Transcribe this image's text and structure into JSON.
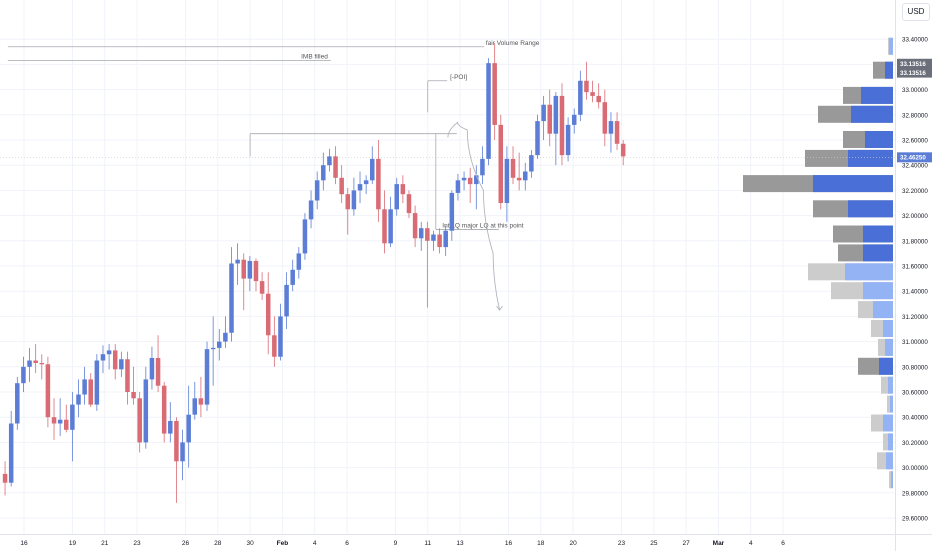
{
  "currency_button": "USD",
  "annotations": [
    {
      "name": "fvr-line",
      "label": "fair Volume Range",
      "price": 33.34,
      "x_from": 0,
      "x_to": 29.5
    },
    {
      "name": "imb-line",
      "label": "IMB filled",
      "price": 33.23,
      "x_from": 0,
      "x_to": 20.0
    },
    {
      "name": "poi-line",
      "label": "[-POI]",
      "price": 33.07,
      "x_from": 26.0,
      "x_to": 27.2
    },
    {
      "name": "poi-upper",
      "label": "",
      "price": 32.65,
      "x_from": 15.0,
      "x_to": 27.8
    },
    {
      "name": "lq-line",
      "label": "Int.LQ major LQ at this point",
      "price": 31.89,
      "x_from": 26.5,
      "x_to": 30.4
    }
  ],
  "current_price_line": 32.4625,
  "colors": {
    "up": "#5b7dd6",
    "down": "#d96b74",
    "vp_bar_dark": "#999999",
    "vp_bar_light": "#cccccc",
    "vp_blue_dark": "#4a6fd6",
    "vp_blue_light": "#93b3f5",
    "label_bg": "#6b6f7a",
    "grid": "#f0f3fa",
    "annotation": "#a6a9b1",
    "text": "#131722"
  },
  "chart_data": {
    "type": "candlestick",
    "title": "",
    "y_axis": {
      "currency": "USD",
      "ticks": [
        "29.60000",
        "29.80000",
        "30.00000",
        "30.20000",
        "30.40000",
        "30.60000",
        "30.80000",
        "31.00000",
        "31.20000",
        "31.40000",
        "31.60000",
        "31.80000",
        "32.00000",
        "32.20000",
        "32.40000",
        "32.60000",
        "32.80000",
        "33.00000",
        "33.20000",
        "33.40000"
      ],
      "ylim": [
        29.55,
        33.5
      ],
      "price_labels": [
        {
          "text": "33.13516",
          "price": 33.205
        },
        {
          "text": "33.13516",
          "price": 33.135
        },
        {
          "text": "32.46250",
          "price": 32.4625
        }
      ]
    },
    "x_axis": {
      "ticks": [
        {
          "label": "16",
          "pos": 1
        },
        {
          "label": "19",
          "pos": 4
        },
        {
          "label": "21",
          "pos": 6
        },
        {
          "label": "23",
          "pos": 8
        },
        {
          "label": "26",
          "pos": 11
        },
        {
          "label": "28",
          "pos": 13
        },
        {
          "label": "30",
          "pos": 15
        },
        {
          "label": "Feb",
          "pos": 17
        },
        {
          "label": "4",
          "pos": 19
        },
        {
          "label": "6",
          "pos": 21
        },
        {
          "label": "9",
          "pos": 24
        },
        {
          "label": "11",
          "pos": 26
        },
        {
          "label": "13",
          "pos": 28
        },
        {
          "label": "16",
          "pos": 31
        },
        {
          "label": "18",
          "pos": 33
        },
        {
          "label": "20",
          "pos": 35
        },
        {
          "label": "23",
          "pos": 38
        },
        {
          "label": "25",
          "pos": 40
        },
        {
          "label": "27",
          "pos": 42
        },
        {
          "label": "Mar",
          "pos": 44
        },
        {
          "label": "4",
          "pos": 46
        },
        {
          "label": "6",
          "pos": 48
        }
      ]
    },
    "ohlc": [
      {
        "o": 29.95,
        "h": 30.05,
        "l": 29.78,
        "c": 29.88
      },
      {
        "o": 29.88,
        "h": 30.45,
        "l": 29.85,
        "c": 30.35
      },
      {
        "o": 30.35,
        "h": 30.72,
        "l": 30.3,
        "c": 30.67
      },
      {
        "o": 30.67,
        "h": 30.88,
        "l": 30.6,
        "c": 30.8
      },
      {
        "o": 30.8,
        "h": 30.95,
        "l": 30.68,
        "c": 30.85
      },
      {
        "o": 30.85,
        "h": 30.98,
        "l": 30.75,
        "c": 30.83
      },
      {
        "o": 30.83,
        "h": 30.9,
        "l": 30.7,
        "c": 30.82
      },
      {
        "o": 30.82,
        "h": 30.88,
        "l": 30.32,
        "c": 30.4
      },
      {
        "o": 30.4,
        "h": 30.55,
        "l": 30.22,
        "c": 30.35
      },
      {
        "o": 30.35,
        "h": 30.55,
        "l": 30.25,
        "c": 30.38
      },
      {
        "o": 30.38,
        "h": 30.5,
        "l": 30.28,
        "c": 30.3
      },
      {
        "o": 30.3,
        "h": 30.6,
        "l": 30.05,
        "c": 30.5
      },
      {
        "o": 30.5,
        "h": 30.7,
        "l": 30.4,
        "c": 30.58
      },
      {
        "o": 30.58,
        "h": 30.8,
        "l": 30.5,
        "c": 30.7
      },
      {
        "o": 30.7,
        "h": 30.75,
        "l": 30.48,
        "c": 30.5
      },
      {
        "o": 30.5,
        "h": 30.9,
        "l": 30.45,
        "c": 30.85
      },
      {
        "o": 30.85,
        "h": 30.97,
        "l": 30.75,
        "c": 30.9
      },
      {
        "o": 30.9,
        "h": 30.98,
        "l": 30.78,
        "c": 30.93
      },
      {
        "o": 30.93,
        "h": 30.98,
        "l": 30.7,
        "c": 30.78
      },
      {
        "o": 30.78,
        "h": 30.92,
        "l": 30.72,
        "c": 30.86
      },
      {
        "o": 30.86,
        "h": 30.92,
        "l": 30.5,
        "c": 30.6
      },
      {
        "o": 30.6,
        "h": 30.8,
        "l": 30.5,
        "c": 30.55
      },
      {
        "o": 30.55,
        "h": 30.6,
        "l": 30.12,
        "c": 30.2
      },
      {
        "o": 30.2,
        "h": 30.8,
        "l": 30.15,
        "c": 30.7
      },
      {
        "o": 30.7,
        "h": 30.96,
        "l": 30.62,
        "c": 30.87
      },
      {
        "o": 30.87,
        "h": 31.05,
        "l": 30.6,
        "c": 30.65
      },
      {
        "o": 30.65,
        "h": 30.68,
        "l": 30.2,
        "c": 30.27
      },
      {
        "o": 30.27,
        "h": 30.52,
        "l": 30.2,
        "c": 30.37
      },
      {
        "o": 30.37,
        "h": 30.4,
        "l": 29.72,
        "c": 30.05
      },
      {
        "o": 30.05,
        "h": 30.3,
        "l": 29.9,
        "c": 30.2
      },
      {
        "o": 30.2,
        "h": 30.65,
        "l": 30.0,
        "c": 30.42
      },
      {
        "o": 30.42,
        "h": 30.68,
        "l": 30.38,
        "c": 30.55
      },
      {
        "o": 30.55,
        "h": 30.72,
        "l": 30.4,
        "c": 30.5
      },
      {
        "o": 30.5,
        "h": 31.0,
        "l": 30.45,
        "c": 30.94
      },
      {
        "o": 30.94,
        "h": 31.2,
        "l": 30.65,
        "c": 30.95
      },
      {
        "o": 30.95,
        "h": 31.1,
        "l": 30.85,
        "c": 31.0
      },
      {
        "o": 31.0,
        "h": 31.2,
        "l": 30.95,
        "c": 31.07
      },
      {
        "o": 31.07,
        "h": 31.75,
        "l": 31.0,
        "c": 31.62
      },
      {
        "o": 31.62,
        "h": 31.78,
        "l": 31.45,
        "c": 31.65
      },
      {
        "o": 31.65,
        "h": 31.7,
        "l": 31.25,
        "c": 31.5
      },
      {
        "o": 31.5,
        "h": 31.68,
        "l": 31.4,
        "c": 31.64
      },
      {
        "o": 31.64,
        "h": 31.66,
        "l": 31.4,
        "c": 31.48
      },
      {
        "o": 31.48,
        "h": 31.55,
        "l": 31.33,
        "c": 31.38
      },
      {
        "o": 31.38,
        "h": 31.55,
        "l": 30.9,
        "c": 31.05
      },
      {
        "o": 31.05,
        "h": 31.2,
        "l": 30.8,
        "c": 30.88
      },
      {
        "o": 30.88,
        "h": 31.3,
        "l": 30.85,
        "c": 31.2
      },
      {
        "o": 31.2,
        "h": 31.55,
        "l": 31.1,
        "c": 31.45
      },
      {
        "o": 31.45,
        "h": 31.65,
        "l": 31.4,
        "c": 31.57
      },
      {
        "o": 31.57,
        "h": 31.75,
        "l": 31.5,
        "c": 31.7
      },
      {
        "o": 31.7,
        "h": 32.02,
        "l": 31.65,
        "c": 31.97
      },
      {
        "o": 31.97,
        "h": 32.2,
        "l": 31.9,
        "c": 32.12
      },
      {
        "o": 32.12,
        "h": 32.35,
        "l": 32.05,
        "c": 32.28
      },
      {
        "o": 32.28,
        "h": 32.5,
        "l": 32.2,
        "c": 32.4
      },
      {
        "o": 32.4,
        "h": 32.53,
        "l": 32.35,
        "c": 32.47
      },
      {
        "o": 32.47,
        "h": 32.55,
        "l": 32.25,
        "c": 32.3
      },
      {
        "o": 32.3,
        "h": 32.4,
        "l": 32.1,
        "c": 32.17
      },
      {
        "o": 32.17,
        "h": 32.22,
        "l": 31.85,
        "c": 32.05
      },
      {
        "o": 32.05,
        "h": 32.3,
        "l": 32.0,
        "c": 32.2
      },
      {
        "o": 32.2,
        "h": 32.35,
        "l": 32.1,
        "c": 32.25
      },
      {
        "o": 32.25,
        "h": 32.32,
        "l": 32.17,
        "c": 32.28
      },
      {
        "o": 32.28,
        "h": 32.55,
        "l": 32.25,
        "c": 32.45
      },
      {
        "o": 32.45,
        "h": 32.6,
        "l": 31.95,
        "c": 32.05
      },
      {
        "o": 32.05,
        "h": 32.2,
        "l": 31.7,
        "c": 31.78
      },
      {
        "o": 31.78,
        "h": 32.15,
        "l": 31.75,
        "c": 32.05
      },
      {
        "o": 32.05,
        "h": 32.3,
        "l": 32.0,
        "c": 32.25
      },
      {
        "o": 32.25,
        "h": 32.32,
        "l": 32.1,
        "c": 32.17
      },
      {
        "o": 32.17,
        "h": 32.2,
        "l": 31.98,
        "c": 32.02
      },
      {
        "o": 32.02,
        "h": 32.08,
        "l": 31.75,
        "c": 31.82
      },
      {
        "o": 31.82,
        "h": 31.95,
        "l": 31.72,
        "c": 31.9
      },
      {
        "o": 31.9,
        "h": 31.95,
        "l": 31.27,
        "c": 31.8
      },
      {
        "o": 31.8,
        "h": 31.88,
        "l": 31.72,
        "c": 31.85
      },
      {
        "o": 31.85,
        "h": 31.9,
        "l": 31.7,
        "c": 31.75
      },
      {
        "o": 31.75,
        "h": 31.92,
        "l": 31.68,
        "c": 31.88
      },
      {
        "o": 31.88,
        "h": 32.2,
        "l": 31.8,
        "c": 32.18
      },
      {
        "o": 32.18,
        "h": 32.33,
        "l": 32.12,
        "c": 32.28
      },
      {
        "o": 32.28,
        "h": 32.35,
        "l": 32.2,
        "c": 32.3
      },
      {
        "o": 32.3,
        "h": 32.38,
        "l": 32.1,
        "c": 32.25
      },
      {
        "o": 32.25,
        "h": 32.4,
        "l": 32.05,
        "c": 32.32
      },
      {
        "o": 32.32,
        "h": 32.55,
        "l": 32.25,
        "c": 32.45
      },
      {
        "o": 32.45,
        "h": 33.25,
        "l": 32.4,
        "c": 33.21
      },
      {
        "o": 33.21,
        "h": 33.37,
        "l": 32.6,
        "c": 32.72
      },
      {
        "o": 32.72,
        "h": 32.8,
        "l": 32.05,
        "c": 32.1
      },
      {
        "o": 32.1,
        "h": 32.55,
        "l": 31.95,
        "c": 32.45
      },
      {
        "o": 32.45,
        "h": 32.55,
        "l": 32.25,
        "c": 32.3
      },
      {
        "o": 32.3,
        "h": 32.5,
        "l": 32.2,
        "c": 32.28
      },
      {
        "o": 32.28,
        "h": 32.42,
        "l": 32.2,
        "c": 32.35
      },
      {
        "o": 32.35,
        "h": 32.52,
        "l": 32.3,
        "c": 32.48
      },
      {
        "o": 32.48,
        "h": 32.8,
        "l": 32.45,
        "c": 32.75
      },
      {
        "o": 32.75,
        "h": 32.95,
        "l": 32.6,
        "c": 32.88
      },
      {
        "o": 32.88,
        "h": 33.0,
        "l": 32.55,
        "c": 32.65
      },
      {
        "o": 32.65,
        "h": 32.98,
        "l": 32.4,
        "c": 32.95
      },
      {
        "o": 32.95,
        "h": 33.05,
        "l": 32.4,
        "c": 32.48
      },
      {
        "o": 32.48,
        "h": 32.78,
        "l": 32.43,
        "c": 32.72
      },
      {
        "o": 32.72,
        "h": 32.85,
        "l": 32.65,
        "c": 32.8
      },
      {
        "o": 32.8,
        "h": 33.15,
        "l": 32.75,
        "c": 33.07
      },
      {
        "o": 33.07,
        "h": 33.22,
        "l": 32.92,
        "c": 32.98
      },
      {
        "o": 32.98,
        "h": 33.07,
        "l": 32.9,
        "c": 32.95
      },
      {
        "o": 32.95,
        "h": 33.05,
        "l": 32.85,
        "c": 32.9
      },
      {
        "o": 32.9,
        "h": 33.0,
        "l": 32.55,
        "c": 32.65
      },
      {
        "o": 32.65,
        "h": 32.82,
        "l": 32.5,
        "c": 32.75
      },
      {
        "o": 32.75,
        "h": 32.82,
        "l": 32.52,
        "c": 32.57
      },
      {
        "o": 32.57,
        "h": 32.6,
        "l": 32.4,
        "c": 32.47
      }
    ],
    "projection": [
      {
        "x": 27.8,
        "price": 32.62
      },
      {
        "x": 28.4,
        "price": 32.74
      },
      {
        "x": 29.0,
        "price": 32.68
      },
      {
        "x": 30.0,
        "price": 32.2
      },
      {
        "x": 30.6,
        "price": 31.7
      },
      {
        "x": 31.0,
        "price": 31.25
      }
    ],
    "volume_profile": [
      {
        "price": 33.34,
        "total": 5,
        "up": 4,
        "light": true
      },
      {
        "price": 33.15,
        "total": 20,
        "up": 8,
        "light": false
      },
      {
        "price": 32.95,
        "total": 50,
        "up": 32,
        "light": false
      },
      {
        "price": 32.8,
        "total": 75,
        "up": 42,
        "light": false
      },
      {
        "price": 32.6,
        "total": 50,
        "up": 28,
        "light": false
      },
      {
        "price": 32.45,
        "total": 88,
        "up": 45,
        "light": false
      },
      {
        "price": 32.25,
        "total": 150,
        "up": 80,
        "light": false
      },
      {
        "price": 32.05,
        "total": 80,
        "up": 45,
        "light": false
      },
      {
        "price": 31.85,
        "total": 60,
        "up": 30,
        "light": false
      },
      {
        "price": 31.7,
        "total": 55,
        "up": 30,
        "light": false
      },
      {
        "price": 31.55,
        "total": 85,
        "up": 48,
        "light": true
      },
      {
        "price": 31.4,
        "total": 62,
        "up": 30,
        "light": true
      },
      {
        "price": 31.25,
        "total": 35,
        "up": 20,
        "light": true
      },
      {
        "price": 31.1,
        "total": 22,
        "up": 10,
        "light": true
      },
      {
        "price": 30.95,
        "total": 15,
        "up": 8,
        "light": true
      },
      {
        "price": 30.8,
        "total": 35,
        "up": 14,
        "light": false
      },
      {
        "price": 30.65,
        "total": 12,
        "up": 5,
        "light": true
      },
      {
        "price": 30.5,
        "total": 6,
        "up": 3,
        "light": true
      },
      {
        "price": 30.35,
        "total": 22,
        "up": 10,
        "light": true
      },
      {
        "price": 30.2,
        "total": 10,
        "up": 5,
        "light": true
      },
      {
        "price": 30.05,
        "total": 16,
        "up": 7,
        "light": true
      },
      {
        "price": 29.9,
        "total": 4,
        "up": 2,
        "light": true
      }
    ]
  }
}
